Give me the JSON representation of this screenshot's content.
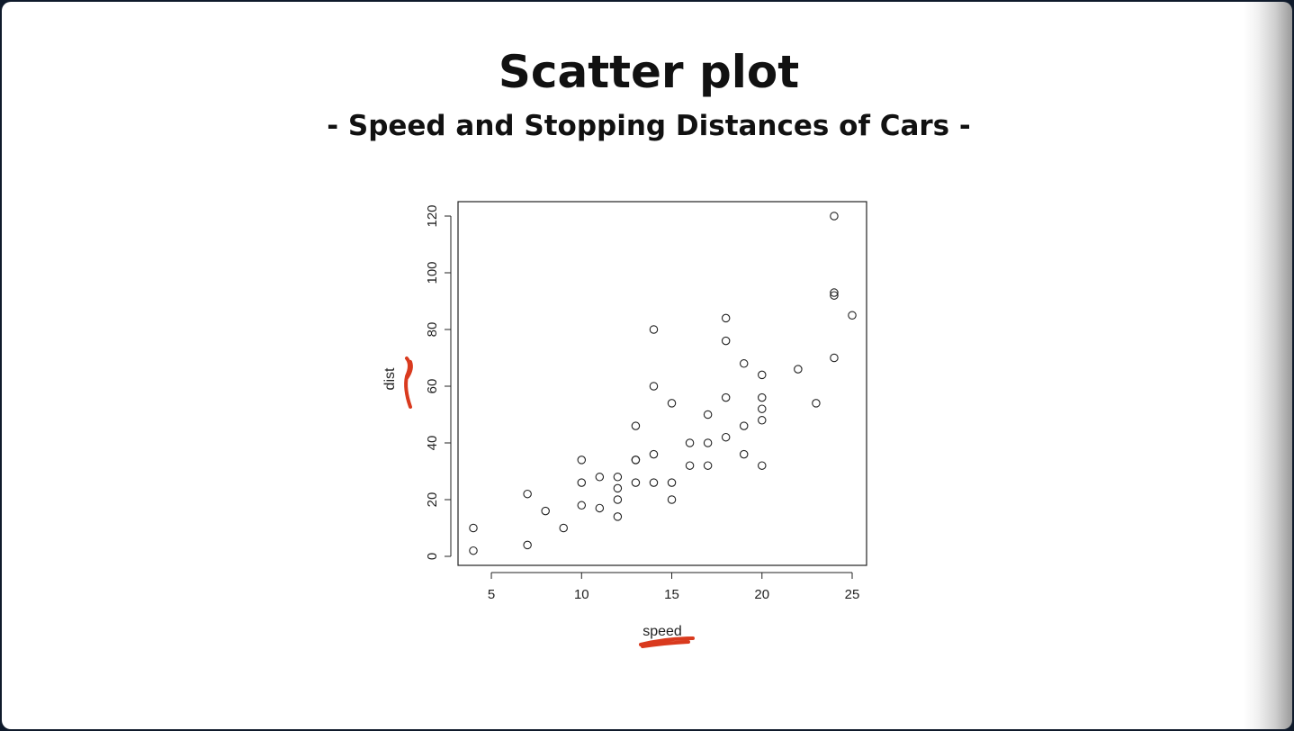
{
  "slide": {
    "title": "Scatter plot",
    "subtitle": "- Speed and Stopping Distances of Cars -"
  },
  "chart_data": {
    "type": "scatter",
    "xlabel": "speed",
    "ylabel": "dist",
    "xlim": [
      4,
      25
    ],
    "ylim": [
      0,
      120
    ],
    "xticks": [
      5,
      10,
      15,
      20,
      25
    ],
    "yticks": [
      0,
      20,
      40,
      60,
      80,
      100,
      120
    ],
    "grid": false,
    "marker": "open-circle",
    "annotation_color": "#d93a1e",
    "x": [
      4,
      4,
      7,
      7,
      8,
      9,
      10,
      10,
      10,
      11,
      11,
      12,
      12,
      12,
      12,
      13,
      13,
      13,
      13,
      14,
      14,
      14,
      14,
      15,
      15,
      15,
      16,
      16,
      17,
      17,
      17,
      18,
      18,
      18,
      18,
      19,
      19,
      19,
      20,
      20,
      20,
      20,
      20,
      22,
      23,
      24,
      24,
      24,
      24,
      25
    ],
    "y": [
      2,
      10,
      4,
      22,
      16,
      10,
      18,
      26,
      34,
      17,
      28,
      14,
      20,
      24,
      28,
      26,
      34,
      34,
      46,
      26,
      36,
      60,
      80,
      20,
      26,
      54,
      32,
      40,
      32,
      40,
      50,
      42,
      56,
      76,
      84,
      36,
      46,
      68,
      32,
      48,
      52,
      56,
      64,
      66,
      54,
      70,
      92,
      93,
      120,
      85
    ]
  }
}
